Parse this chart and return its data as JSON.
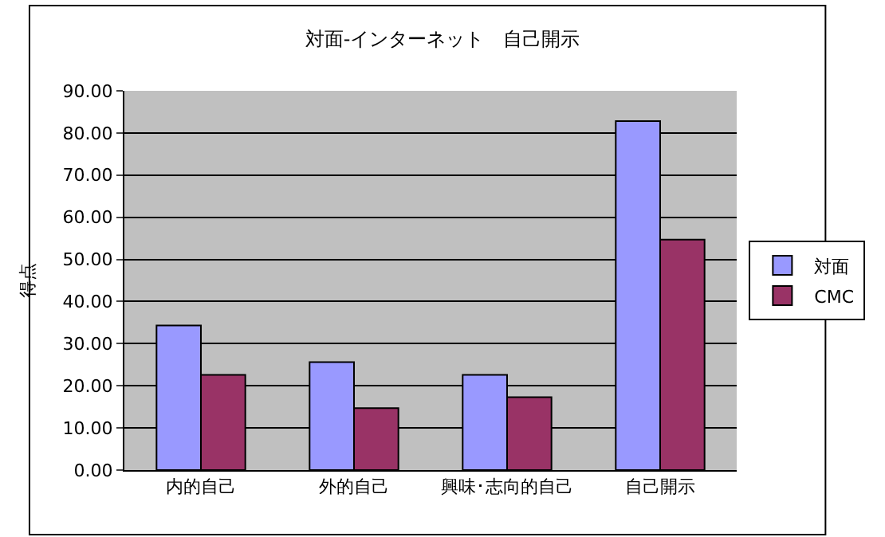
{
  "chart_data": {
    "type": "bar",
    "title": "対面-インターネット　自己開示",
    "ylabel": "得点",
    "categories": [
      "内的自己",
      "外的自己",
      "興味･志向的自己",
      "自己開示"
    ],
    "series": [
      {
        "name": "対面",
        "color": "#9999ff",
        "values": [
          34.3,
          25.6,
          22.6,
          82.8
        ]
      },
      {
        "name": "CMC",
        "color": "#993366",
        "values": [
          22.6,
          14.7,
          17.3,
          54.7
        ]
      }
    ],
    "ylim": [
      0,
      90
    ],
    "yticks": [
      {
        "value": 0,
        "label": "0.00"
      },
      {
        "value": 10,
        "label": "10.00"
      },
      {
        "value": 20,
        "label": "20.00"
      },
      {
        "value": 30,
        "label": "30.00"
      },
      {
        "value": 40,
        "label": "40.00"
      },
      {
        "value": 50,
        "label": "50.00"
      },
      {
        "value": 60,
        "label": "60.00"
      },
      {
        "value": 70,
        "label": "70.00"
      },
      {
        "value": 80,
        "label": "80.00"
      },
      {
        "value": 90,
        "label": "90.00"
      }
    ],
    "grid": "y",
    "legend": "right"
  }
}
